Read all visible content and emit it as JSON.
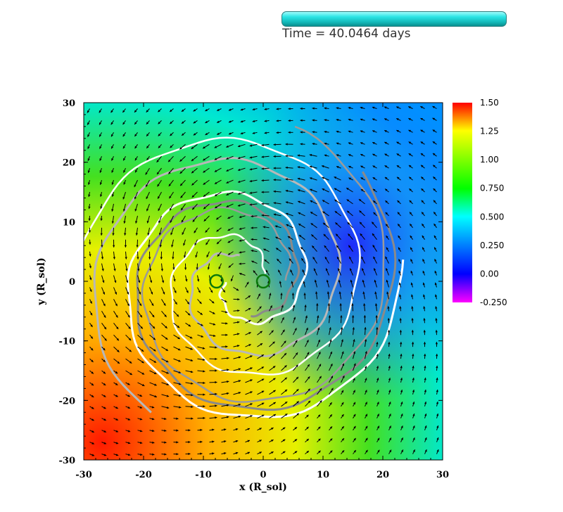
{
  "time_label": "Time = 40.0464 days",
  "chart_data": {
    "type": "heatmap",
    "title": "",
    "xlabel": "x (R_sol)",
    "ylabel": "y (R_sol)",
    "xlim": [
      -30,
      30
    ],
    "ylim": [
      -30,
      30
    ],
    "x_ticks": [
      "-30",
      "-20",
      "-10",
      "0",
      "10",
      "20",
      "30"
    ],
    "y_ticks": [
      "30",
      "20",
      "10",
      "0",
      "-10",
      "-20",
      "-30"
    ],
    "colorbar": {
      "range": [
        -0.25,
        1.5
      ],
      "tick_labels": [
        "1.50",
        "1.25",
        "1.00",
        "0.750",
        "0.500",
        "0.250",
        "0.00",
        "-0.250"
      ],
      "colors": [
        "#ff00ff",
        "#0000ff",
        "#00ffff",
        "#00ff00",
        "#ffff00",
        "#ff0000"
      ]
    },
    "overlays": {
      "vector_field": "velocity arrows",
      "contours": [
        "white",
        "light-gray",
        "dark-gray"
      ],
      "markers": [
        {
          "name": "star-1",
          "x": -7.8,
          "y": 0.0,
          "color": "#0b7a0b"
        },
        {
          "name": "star-2",
          "x": 0.0,
          "y": 0.0,
          "color": "#0b7a0b"
        }
      ]
    }
  }
}
